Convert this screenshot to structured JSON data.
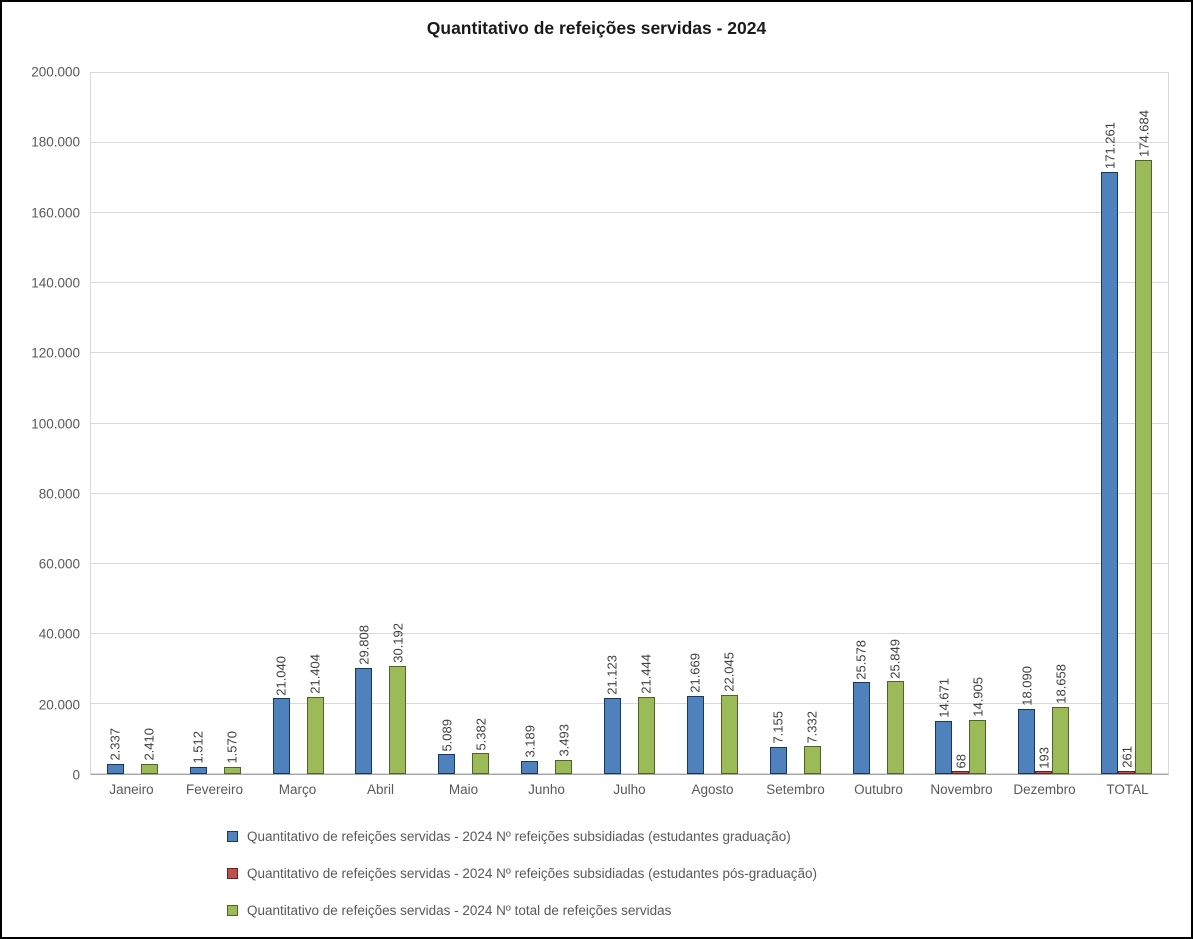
{
  "chart_data": {
    "type": "bar",
    "title": "Quantitativo de refeições servidas - 2024",
    "categories": [
      "Janeiro",
      "Fevereiro",
      "Março",
      "Abril",
      "Maio",
      "Junho",
      "Julho",
      "Agosto",
      "Setembro",
      "Outubro",
      "Novembro",
      "Dezembro",
      "TOTAL"
    ],
    "series": [
      {
        "name": "Quantitativo de refeições servidas - 2024 Nº refeições subsidiadas (estudantes graduação)",
        "key": "graduacao",
        "color": "#4f81bd",
        "border_color": "#17375e",
        "values": [
          2337,
          1512,
          21040,
          29808,
          5089,
          3189,
          21123,
          21669,
          7155,
          25578,
          14671,
          18090,
          171261
        ],
        "labels": [
          "2.337",
          "1.512",
          "21.040",
          "29.808",
          "5.089",
          "3.189",
          "21.123",
          "21.669",
          "7.155",
          "25.578",
          "14.671",
          "18.090",
          "171.261"
        ]
      },
      {
        "name": "Quantitativo de refeições servidas - 2024 Nº refeições subsidiadas (estudantes pós-graduação)",
        "key": "pos-graduacao",
        "color": "#c0504d",
        "border_color": "#632423",
        "values": [
          0,
          0,
          0,
          0,
          0,
          0,
          0,
          0,
          0,
          0,
          68,
          193,
          261
        ],
        "labels": [
          "",
          "",
          "",
          "",
          "",
          "",
          "",
          "",
          "",
          "",
          "68",
          "193",
          "261"
        ]
      },
      {
        "name": "Quantitativo de refeições servidas - 2024 Nº total de refeições servidas",
        "key": "total",
        "color": "#9bbb59",
        "border_color": "#4f6228",
        "values": [
          2410,
          1570,
          21404,
          30192,
          5382,
          3493,
          21444,
          22045,
          7332,
          25849,
          14905,
          18658,
          174684
        ],
        "labels": [
          "2.410",
          "1.570",
          "21.404",
          "30.192",
          "5.382",
          "3.493",
          "21.444",
          "22.045",
          "7.332",
          "25.849",
          "14.905",
          "18.658",
          "174.684"
        ]
      }
    ],
    "y_axis": {
      "min": 0,
      "max": 200000,
      "step": 20000,
      "tick_labels": [
        "0",
        "20.000",
        "40.000",
        "60.000",
        "80.000",
        "100.000",
        "120.000",
        "140.000",
        "160.000",
        "180.000",
        "200.000"
      ]
    },
    "grid": true,
    "legend_position": "bottom",
    "data_label_orientation": "vertical"
  }
}
